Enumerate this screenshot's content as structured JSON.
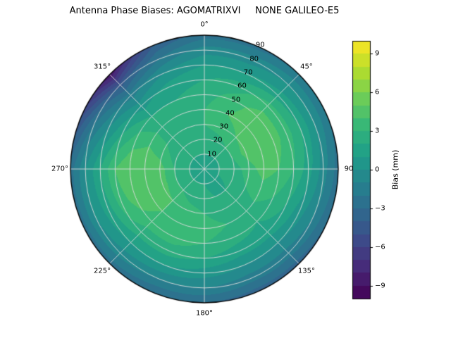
{
  "chart_data": {
    "type": "heatmap",
    "projection": "polar",
    "title": "Antenna Phase Biases: AGOMATRIXVI     NONE GALILEO-E5",
    "theta_tick_deg": [
      0,
      45,
      90,
      135,
      180,
      225,
      270,
      315
    ],
    "theta_tick_labels": [
      "0°",
      "45°",
      "90",
      "135°",
      "180°",
      "225°",
      "270°",
      "315°"
    ],
    "r_ticks": [
      10,
      20,
      30,
      40,
      50,
      60,
      70,
      80,
      90
    ],
    "r_tick_labels": [
      "10",
      "20",
      "30",
      "40",
      "50",
      "60",
      "70",
      "80",
      "90"
    ],
    "r_label_angle_deg": 24,
    "rmax": 90,
    "level_step_mm": 1,
    "grid_on": true,
    "colorbar": {
      "label": "Bias (mm)",
      "ticks": [
        9,
        6,
        3,
        0,
        -3,
        -6,
        -9
      ],
      "tick_labels": [
        "9",
        "6",
        "3",
        "0",
        "−3",
        "−6",
        "−9"
      ],
      "vmin": -10,
      "vmax": 10,
      "colormap": "viridis",
      "colormap_stops": [
        "#440154",
        "#482878",
        "#3e4a89",
        "#31688e",
        "#26828e",
        "#1f9e89",
        "#35b779",
        "#6dcd59",
        "#b4de2c",
        "#fde725"
      ]
    },
    "azimuth_deg": [
      0,
      22.5,
      45,
      67.5,
      90,
      112.5,
      135,
      157.5,
      180,
      202.5,
      225,
      247.5,
      270,
      292.5,
      315,
      337.5
    ],
    "zenith_deg": [
      0,
      10,
      20,
      30,
      40,
      50,
      60,
      70,
      80,
      90
    ],
    "bias_mm": [
      [
        1.5,
        2.0,
        2.5,
        3.0,
        3.0,
        2.5,
        2.0,
        1.0,
        -0.5,
        -2.5
      ],
      [
        1.5,
        2.0,
        2.5,
        3.5,
        4.0,
        3.5,
        2.5,
        1.0,
        -0.5,
        -2.5
      ],
      [
        1.5,
        2.0,
        3.0,
        4.0,
        4.5,
        4.5,
        3.5,
        1.5,
        0.0,
        -2.0
      ],
      [
        1.5,
        2.0,
        3.0,
        4.5,
        5.0,
        4.5,
        3.5,
        2.0,
        0.0,
        -2.0
      ],
      [
        1.5,
        2.0,
        2.5,
        3.5,
        4.5,
        4.0,
        3.0,
        1.5,
        -0.5,
        -2.5
      ],
      [
        1.5,
        2.0,
        2.5,
        3.0,
        3.5,
        3.0,
        2.0,
        0.5,
        -1.0,
        -3.0
      ],
      [
        1.5,
        1.5,
        2.0,
        2.5,
        2.5,
        2.0,
        1.5,
        0.0,
        -1.5,
        -3.5
      ],
      [
        1.5,
        1.5,
        2.0,
        2.5,
        3.0,
        2.5,
        1.5,
        0.0,
        -1.5,
        -3.5
      ],
      [
        1.5,
        2.0,
        2.5,
        3.0,
        3.5,
        3.0,
        2.0,
        0.5,
        -1.0,
        -3.0
      ],
      [
        1.5,
        2.0,
        2.5,
        3.5,
        4.0,
        3.5,
        2.5,
        1.0,
        -1.0,
        -3.0
      ],
      [
        1.5,
        2.0,
        3.0,
        4.0,
        4.0,
        3.5,
        2.5,
        1.0,
        -0.5,
        -2.5
      ],
      [
        1.5,
        2.0,
        3.0,
        4.5,
        5.0,
        4.5,
        3.5,
        1.5,
        0.0,
        -2.5
      ],
      [
        1.5,
        2.0,
        3.0,
        4.5,
        5.0,
        5.0,
        4.0,
        2.0,
        0.0,
        -2.5
      ],
      [
        1.5,
        2.0,
        2.5,
        3.5,
        4.0,
        3.5,
        2.0,
        0.0,
        -2.0,
        -5.0
      ],
      [
        1.5,
        2.0,
        2.0,
        2.5,
        2.5,
        2.0,
        0.5,
        -1.5,
        -4.5,
        -9.0
      ],
      [
        1.5,
        2.0,
        2.5,
        2.5,
        2.5,
        2.0,
        1.5,
        0.0,
        -2.0,
        -4.0
      ]
    ]
  },
  "colors": {
    "background": "#ffffff",
    "grid_line": "#dedede",
    "outline": "#000000",
    "text": "#000000"
  }
}
